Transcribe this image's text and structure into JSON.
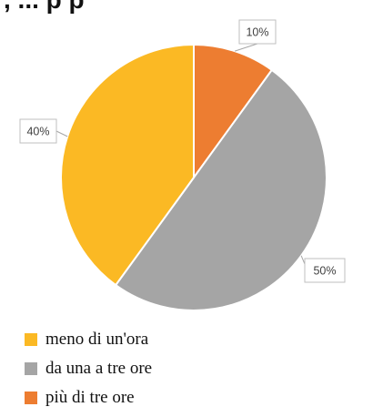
{
  "header": {
    "title_fragment": ", ... p p"
  },
  "chart_data": {
    "type": "pie",
    "slices": [
      {
        "label": "più di tre ore",
        "value": 10,
        "display": "10%",
        "color": "#ED7D31"
      },
      {
        "label": "da una a tre ore",
        "value": 50,
        "display": "50%",
        "color": "#A5A5A5"
      },
      {
        "label": "meno di un'ora",
        "value": 40,
        "display": "40%",
        "color": "#FBB924"
      }
    ],
    "start_angle_deg": 0,
    "direction": "clockwise",
    "legend_position": "bottom-left",
    "legend_order": [
      "meno di un'ora",
      "da una a tre ore",
      "più di tre ore"
    ]
  },
  "legend": {
    "items": [
      {
        "label": "meno di un'ora",
        "color": "#FBB924"
      },
      {
        "label": "da una a tre ore",
        "color": "#A5A5A5"
      },
      {
        "label": "più di tre ore",
        "color": "#ED7D31"
      }
    ]
  }
}
